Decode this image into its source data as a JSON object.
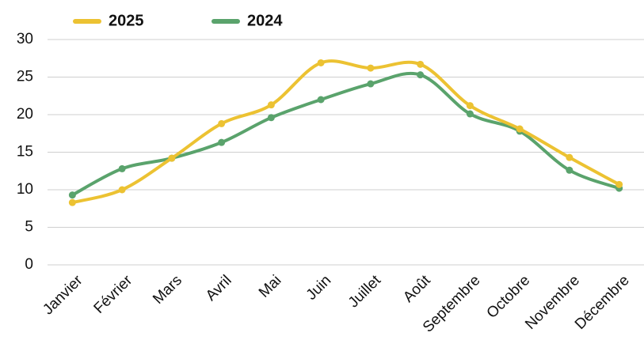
{
  "chart_data": {
    "type": "line",
    "categories": [
      "Janvier",
      "Février",
      "Mars",
      "Avril",
      "Mai",
      "Juin",
      "Juillet",
      "Août",
      "Septembre",
      "Octobre",
      "Novembre",
      "Décembre"
    ],
    "series": [
      {
        "name": "2025",
        "color": "#ecc232",
        "values": [
          8.3,
          10.0,
          14.2,
          18.8,
          21.3,
          26.9,
          26.2,
          26.7,
          21.2,
          18.1,
          14.3,
          10.7
        ]
      },
      {
        "name": "2024",
        "color": "#5aa36c",
        "values": [
          9.3,
          12.8,
          14.2,
          16.3,
          19.6,
          22.0,
          24.1,
          25.3,
          20.1,
          17.8,
          12.6,
          10.2
        ]
      }
    ],
    "ylim": [
      0,
      30
    ],
    "yticks": [
      0,
      5,
      10,
      15,
      20,
      25,
      30
    ],
    "grid": true,
    "smooth": true,
    "legend": "top-left"
  }
}
